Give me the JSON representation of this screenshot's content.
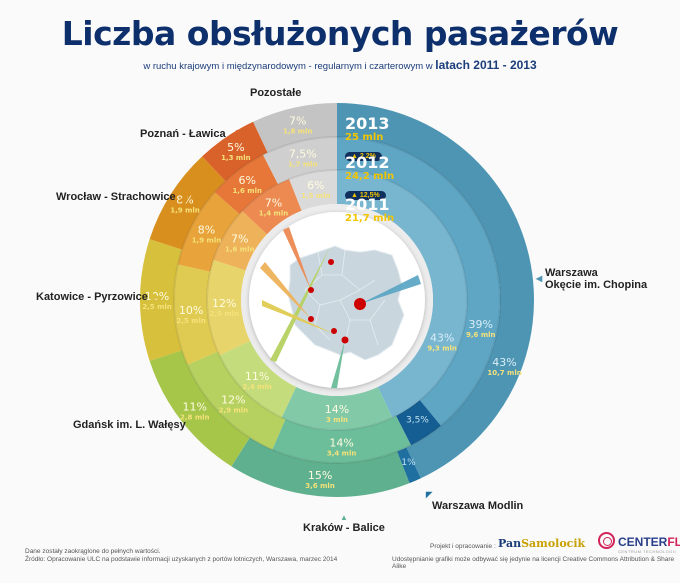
{
  "header": {
    "title": "Liczba obsłużonych pasażerów",
    "subtitle_prefix": "w ruchu krajowym i międzynarodowym -  regularnym i czarterowym w ",
    "subtitle_emph": "latach 2011 - 2013"
  },
  "years": [
    {
      "year": "2013",
      "total": "25 mln",
      "change": "2,2%",
      "change_dir": "up"
    },
    {
      "year": "2012",
      "total": "24,2 mln",
      "change": "12,5%",
      "change_dir": "up"
    },
    {
      "year": "2011",
      "total": "21,7 mln"
    }
  ],
  "airport_labels": {
    "pozostale": "Pozostałe",
    "poznan": "Poznań - Ławica",
    "wroclaw": "Wrocław - Strachowice",
    "katowice": "Katowice - Pyrzowice",
    "gdansk": "Gdańsk im. L. Wałęsy",
    "krakow": "Kraków - Balice",
    "modlin": "Warszawa Modlin",
    "chopin_line1": "Warszawa",
    "chopin_line2": "Okęcie im. Chopina"
  },
  "footer": {
    "note": "Dane zostały zaokrąglone do pełnych wartości.",
    "source": "Źródło: Opracowanie ULC na podstawie informacji uzyskanych z portów lotniczych, Warszawa, marzec 2014",
    "project": "Projekt i opracowanie :",
    "logo1_a": "Pan",
    "logo1_b": "Samolocik",
    "logo2_a": "CENTER",
    "logo2_b": "FLY",
    "logo2_sub": "CENTRUM TECHNOLOGII",
    "license": "Udostępnianie grafiki może odbywać się jedynie na licencji Creative Commons Attribution & Share Alike"
  },
  "colors": {
    "chopin": [
      "#4d95b3",
      "#5ea6c4",
      "#78b6d0"
    ],
    "modlin": [
      "#1f6fa0",
      "#155e93"
    ],
    "krakow": [
      "#5fb08e",
      "#6cbd9a",
      "#82c9a8"
    ],
    "gdansk": [
      "#a6c64a",
      "#b6d160",
      "#c4dc7b"
    ],
    "katowice": [
      "#d6c03c",
      "#e0cb52",
      "#e7d46a"
    ],
    "wroclaw": [
      "#d98f1e",
      "#e8a33a",
      "#eeb25a"
    ],
    "poznan": [
      "#d9622a",
      "#e77738",
      "#ec8a52"
    ],
    "pozostale": [
      "#c4c4c4",
      "#cfcfcf",
      "#dadada"
    ],
    "title": "#0d2f6b",
    "year_value": "#f2c500"
  },
  "chart_data": {
    "type": "pie",
    "subtype": "multi-ring donut",
    "title": "Liczba obsłużonych pasażerów w ruchu krajowym i międzynarodowym - regularnym i czarterowym w latach 2011 - 2013",
    "rings": [
      "2013 (outer)",
      "2012 (middle)",
      "2011 (inner)"
    ],
    "categories": [
      "Warszawa Okęcie im. Chopina",
      "Warszawa Modlin",
      "Kraków - Balice",
      "Gdańsk im. L. Wałęsy",
      "Katowice - Pyrzowice",
      "Wrocław - Strachowice",
      "Poznań - Ławica",
      "Pozostałe"
    ],
    "totals_mln": {
      "2011": 21.7,
      "2012": 24.2,
      "2013": 25.0
    },
    "total_change": {
      "2012": "+12,5%",
      "2013": "+2,2%"
    },
    "series": [
      {
        "name": "2013",
        "share_pct": [
          43,
          1,
          15,
          11,
          10,
          8,
          5,
          7
        ],
        "passengers_mln": [
          10.7,
          null,
          3.6,
          2.8,
          2.5,
          1.9,
          1.3,
          1.8
        ]
      },
      {
        "name": "2012",
        "share_pct": [
          39,
          3.5,
          14,
          12,
          10,
          8,
          6,
          7.5
        ],
        "passengers_mln": [
          9.6,
          null,
          3.4,
          2.9,
          2.5,
          1.9,
          1.6,
          1.7
        ]
      },
      {
        "name": "2011",
        "share_pct": [
          43,
          0,
          14,
          11,
          12,
          7,
          7,
          6
        ],
        "passengers_mln": [
          9.3,
          null,
          3.0,
          2.4,
          2.5,
          1.6,
          1.4,
          1.5
        ]
      }
    ],
    "share_change_badges": {
      "2012_to_2013": {
        "Warszawa Okęcie im. Chopina": "+4%",
        "Kraków - Balice": "+1%",
        "Gdańsk im. L. Wałęsy": "-1%",
        "Katowice - Pyrzowice": "0%",
        "Poznań - Ławica": "-1%",
        "Pozostałe": "-0,5%"
      },
      "2011_to_2012": {
        "Warszawa Okęcie im. Chopina": "-4%",
        "Gdańsk im. L. Wałęsy": "+1%",
        "Katowice - Pyrzowice": "-2%",
        "Wrocław - Strachowice": "+1%",
        "Poznań - Ławica": "-1%",
        "Pozostałe": "+1,5%"
      }
    },
    "legend": "airport labels around chart with pointers to map locations"
  }
}
